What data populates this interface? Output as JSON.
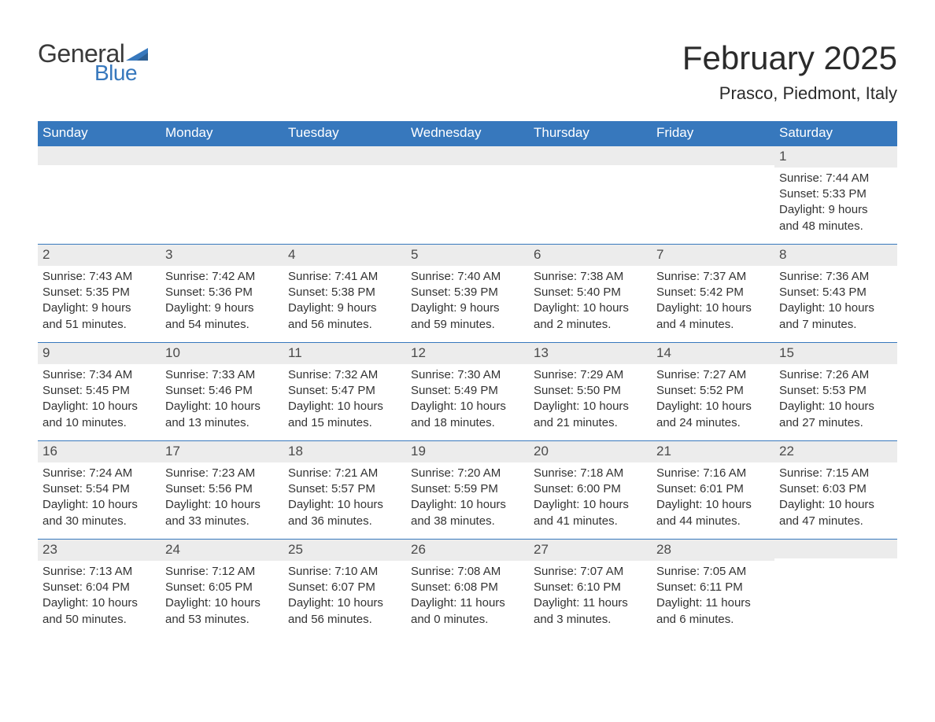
{
  "logo": {
    "word1": "General",
    "word2": "Blue",
    "text_color": "#3a3a3a",
    "accent_color": "#3778bd"
  },
  "title": {
    "month": "February 2025",
    "location": "Prasco, Piedmont, Italy"
  },
  "colors": {
    "header_bg": "#3778bd",
    "header_text": "#ffffff",
    "daynum_bg": "#ececec",
    "body_text": "#333333",
    "page_bg": "#ffffff",
    "week_border": "#3778bd"
  },
  "typography": {
    "title_fontsize": 42,
    "location_fontsize": 22,
    "weekday_fontsize": 17,
    "daynum_fontsize": 17,
    "body_fontsize": 15
  },
  "weekdays": [
    "Sunday",
    "Monday",
    "Tuesday",
    "Wednesday",
    "Thursday",
    "Friday",
    "Saturday"
  ],
  "weeks": [
    [
      null,
      null,
      null,
      null,
      null,
      null,
      {
        "n": "1",
        "sunrise": "Sunrise: 7:44 AM",
        "sunset": "Sunset: 5:33 PM",
        "day1": "Daylight: 9 hours",
        "day2": "and 48 minutes."
      }
    ],
    [
      {
        "n": "2",
        "sunrise": "Sunrise: 7:43 AM",
        "sunset": "Sunset: 5:35 PM",
        "day1": "Daylight: 9 hours",
        "day2": "and 51 minutes."
      },
      {
        "n": "3",
        "sunrise": "Sunrise: 7:42 AM",
        "sunset": "Sunset: 5:36 PM",
        "day1": "Daylight: 9 hours",
        "day2": "and 54 minutes."
      },
      {
        "n": "4",
        "sunrise": "Sunrise: 7:41 AM",
        "sunset": "Sunset: 5:38 PM",
        "day1": "Daylight: 9 hours",
        "day2": "and 56 minutes."
      },
      {
        "n": "5",
        "sunrise": "Sunrise: 7:40 AM",
        "sunset": "Sunset: 5:39 PM",
        "day1": "Daylight: 9 hours",
        "day2": "and 59 minutes."
      },
      {
        "n": "6",
        "sunrise": "Sunrise: 7:38 AM",
        "sunset": "Sunset: 5:40 PM",
        "day1": "Daylight: 10 hours",
        "day2": "and 2 minutes."
      },
      {
        "n": "7",
        "sunrise": "Sunrise: 7:37 AM",
        "sunset": "Sunset: 5:42 PM",
        "day1": "Daylight: 10 hours",
        "day2": "and 4 minutes."
      },
      {
        "n": "8",
        "sunrise": "Sunrise: 7:36 AM",
        "sunset": "Sunset: 5:43 PM",
        "day1": "Daylight: 10 hours",
        "day2": "and 7 minutes."
      }
    ],
    [
      {
        "n": "9",
        "sunrise": "Sunrise: 7:34 AM",
        "sunset": "Sunset: 5:45 PM",
        "day1": "Daylight: 10 hours",
        "day2": "and 10 minutes."
      },
      {
        "n": "10",
        "sunrise": "Sunrise: 7:33 AM",
        "sunset": "Sunset: 5:46 PM",
        "day1": "Daylight: 10 hours",
        "day2": "and 13 minutes."
      },
      {
        "n": "11",
        "sunrise": "Sunrise: 7:32 AM",
        "sunset": "Sunset: 5:47 PM",
        "day1": "Daylight: 10 hours",
        "day2": "and 15 minutes."
      },
      {
        "n": "12",
        "sunrise": "Sunrise: 7:30 AM",
        "sunset": "Sunset: 5:49 PM",
        "day1": "Daylight: 10 hours",
        "day2": "and 18 minutes."
      },
      {
        "n": "13",
        "sunrise": "Sunrise: 7:29 AM",
        "sunset": "Sunset: 5:50 PM",
        "day1": "Daylight: 10 hours",
        "day2": "and 21 minutes."
      },
      {
        "n": "14",
        "sunrise": "Sunrise: 7:27 AM",
        "sunset": "Sunset: 5:52 PM",
        "day1": "Daylight: 10 hours",
        "day2": "and 24 minutes."
      },
      {
        "n": "15",
        "sunrise": "Sunrise: 7:26 AM",
        "sunset": "Sunset: 5:53 PM",
        "day1": "Daylight: 10 hours",
        "day2": "and 27 minutes."
      }
    ],
    [
      {
        "n": "16",
        "sunrise": "Sunrise: 7:24 AM",
        "sunset": "Sunset: 5:54 PM",
        "day1": "Daylight: 10 hours",
        "day2": "and 30 minutes."
      },
      {
        "n": "17",
        "sunrise": "Sunrise: 7:23 AM",
        "sunset": "Sunset: 5:56 PM",
        "day1": "Daylight: 10 hours",
        "day2": "and 33 minutes."
      },
      {
        "n": "18",
        "sunrise": "Sunrise: 7:21 AM",
        "sunset": "Sunset: 5:57 PM",
        "day1": "Daylight: 10 hours",
        "day2": "and 36 minutes."
      },
      {
        "n": "19",
        "sunrise": "Sunrise: 7:20 AM",
        "sunset": "Sunset: 5:59 PM",
        "day1": "Daylight: 10 hours",
        "day2": "and 38 minutes."
      },
      {
        "n": "20",
        "sunrise": "Sunrise: 7:18 AM",
        "sunset": "Sunset: 6:00 PM",
        "day1": "Daylight: 10 hours",
        "day2": "and 41 minutes."
      },
      {
        "n": "21",
        "sunrise": "Sunrise: 7:16 AM",
        "sunset": "Sunset: 6:01 PM",
        "day1": "Daylight: 10 hours",
        "day2": "and 44 minutes."
      },
      {
        "n": "22",
        "sunrise": "Sunrise: 7:15 AM",
        "sunset": "Sunset: 6:03 PM",
        "day1": "Daylight: 10 hours",
        "day2": "and 47 minutes."
      }
    ],
    [
      {
        "n": "23",
        "sunrise": "Sunrise: 7:13 AM",
        "sunset": "Sunset: 6:04 PM",
        "day1": "Daylight: 10 hours",
        "day2": "and 50 minutes."
      },
      {
        "n": "24",
        "sunrise": "Sunrise: 7:12 AM",
        "sunset": "Sunset: 6:05 PM",
        "day1": "Daylight: 10 hours",
        "day2": "and 53 minutes."
      },
      {
        "n": "25",
        "sunrise": "Sunrise: 7:10 AM",
        "sunset": "Sunset: 6:07 PM",
        "day1": "Daylight: 10 hours",
        "day2": "and 56 minutes."
      },
      {
        "n": "26",
        "sunrise": "Sunrise: 7:08 AM",
        "sunset": "Sunset: 6:08 PM",
        "day1": "Daylight: 11 hours",
        "day2": "and 0 minutes."
      },
      {
        "n": "27",
        "sunrise": "Sunrise: 7:07 AM",
        "sunset": "Sunset: 6:10 PM",
        "day1": "Daylight: 11 hours",
        "day2": "and 3 minutes."
      },
      {
        "n": "28",
        "sunrise": "Sunrise: 7:05 AM",
        "sunset": "Sunset: 6:11 PM",
        "day1": "Daylight: 11 hours",
        "day2": "and 6 minutes."
      },
      null
    ]
  ]
}
